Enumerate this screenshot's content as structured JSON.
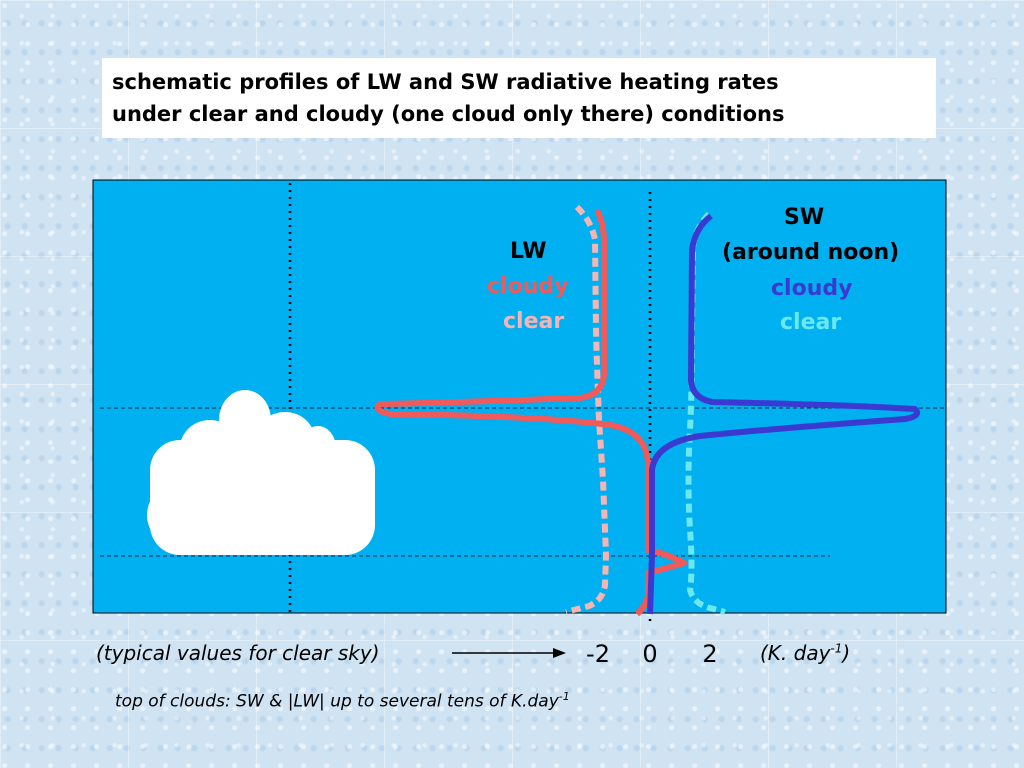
{
  "title": {
    "line1": "schematic profiles of LW and SW radiative heating rates",
    "line2": "under clear and cloudy (one cloud only there) conditions"
  },
  "legend": {
    "lw": {
      "heading": "LW",
      "cloudy": "cloudy",
      "clear": "clear"
    },
    "sw": {
      "heading": "SW",
      "sub": "(around noon)",
      "cloudy": "cloudy",
      "clear": "clear"
    }
  },
  "axis": {
    "note": "(typical values for clear sky)",
    "ticks": [
      "-2",
      "0",
      "2"
    ],
    "unit_prefix": "(K. day",
    "unit_exp": "-1",
    "unit_suffix": ")"
  },
  "footnote": {
    "text": "top of clouds: SW & |LW| up to several tens of K.day",
    "exp": "-1"
  },
  "colors": {
    "panel_bg": "#00b0f0",
    "lw_cloudy": "#f05a5a",
    "lw_clear": "#f5b5b5",
    "sw_cloudy": "#3a3ad0",
    "sw_clear": "#6ae8ee",
    "cloud": "#ffffff"
  }
}
